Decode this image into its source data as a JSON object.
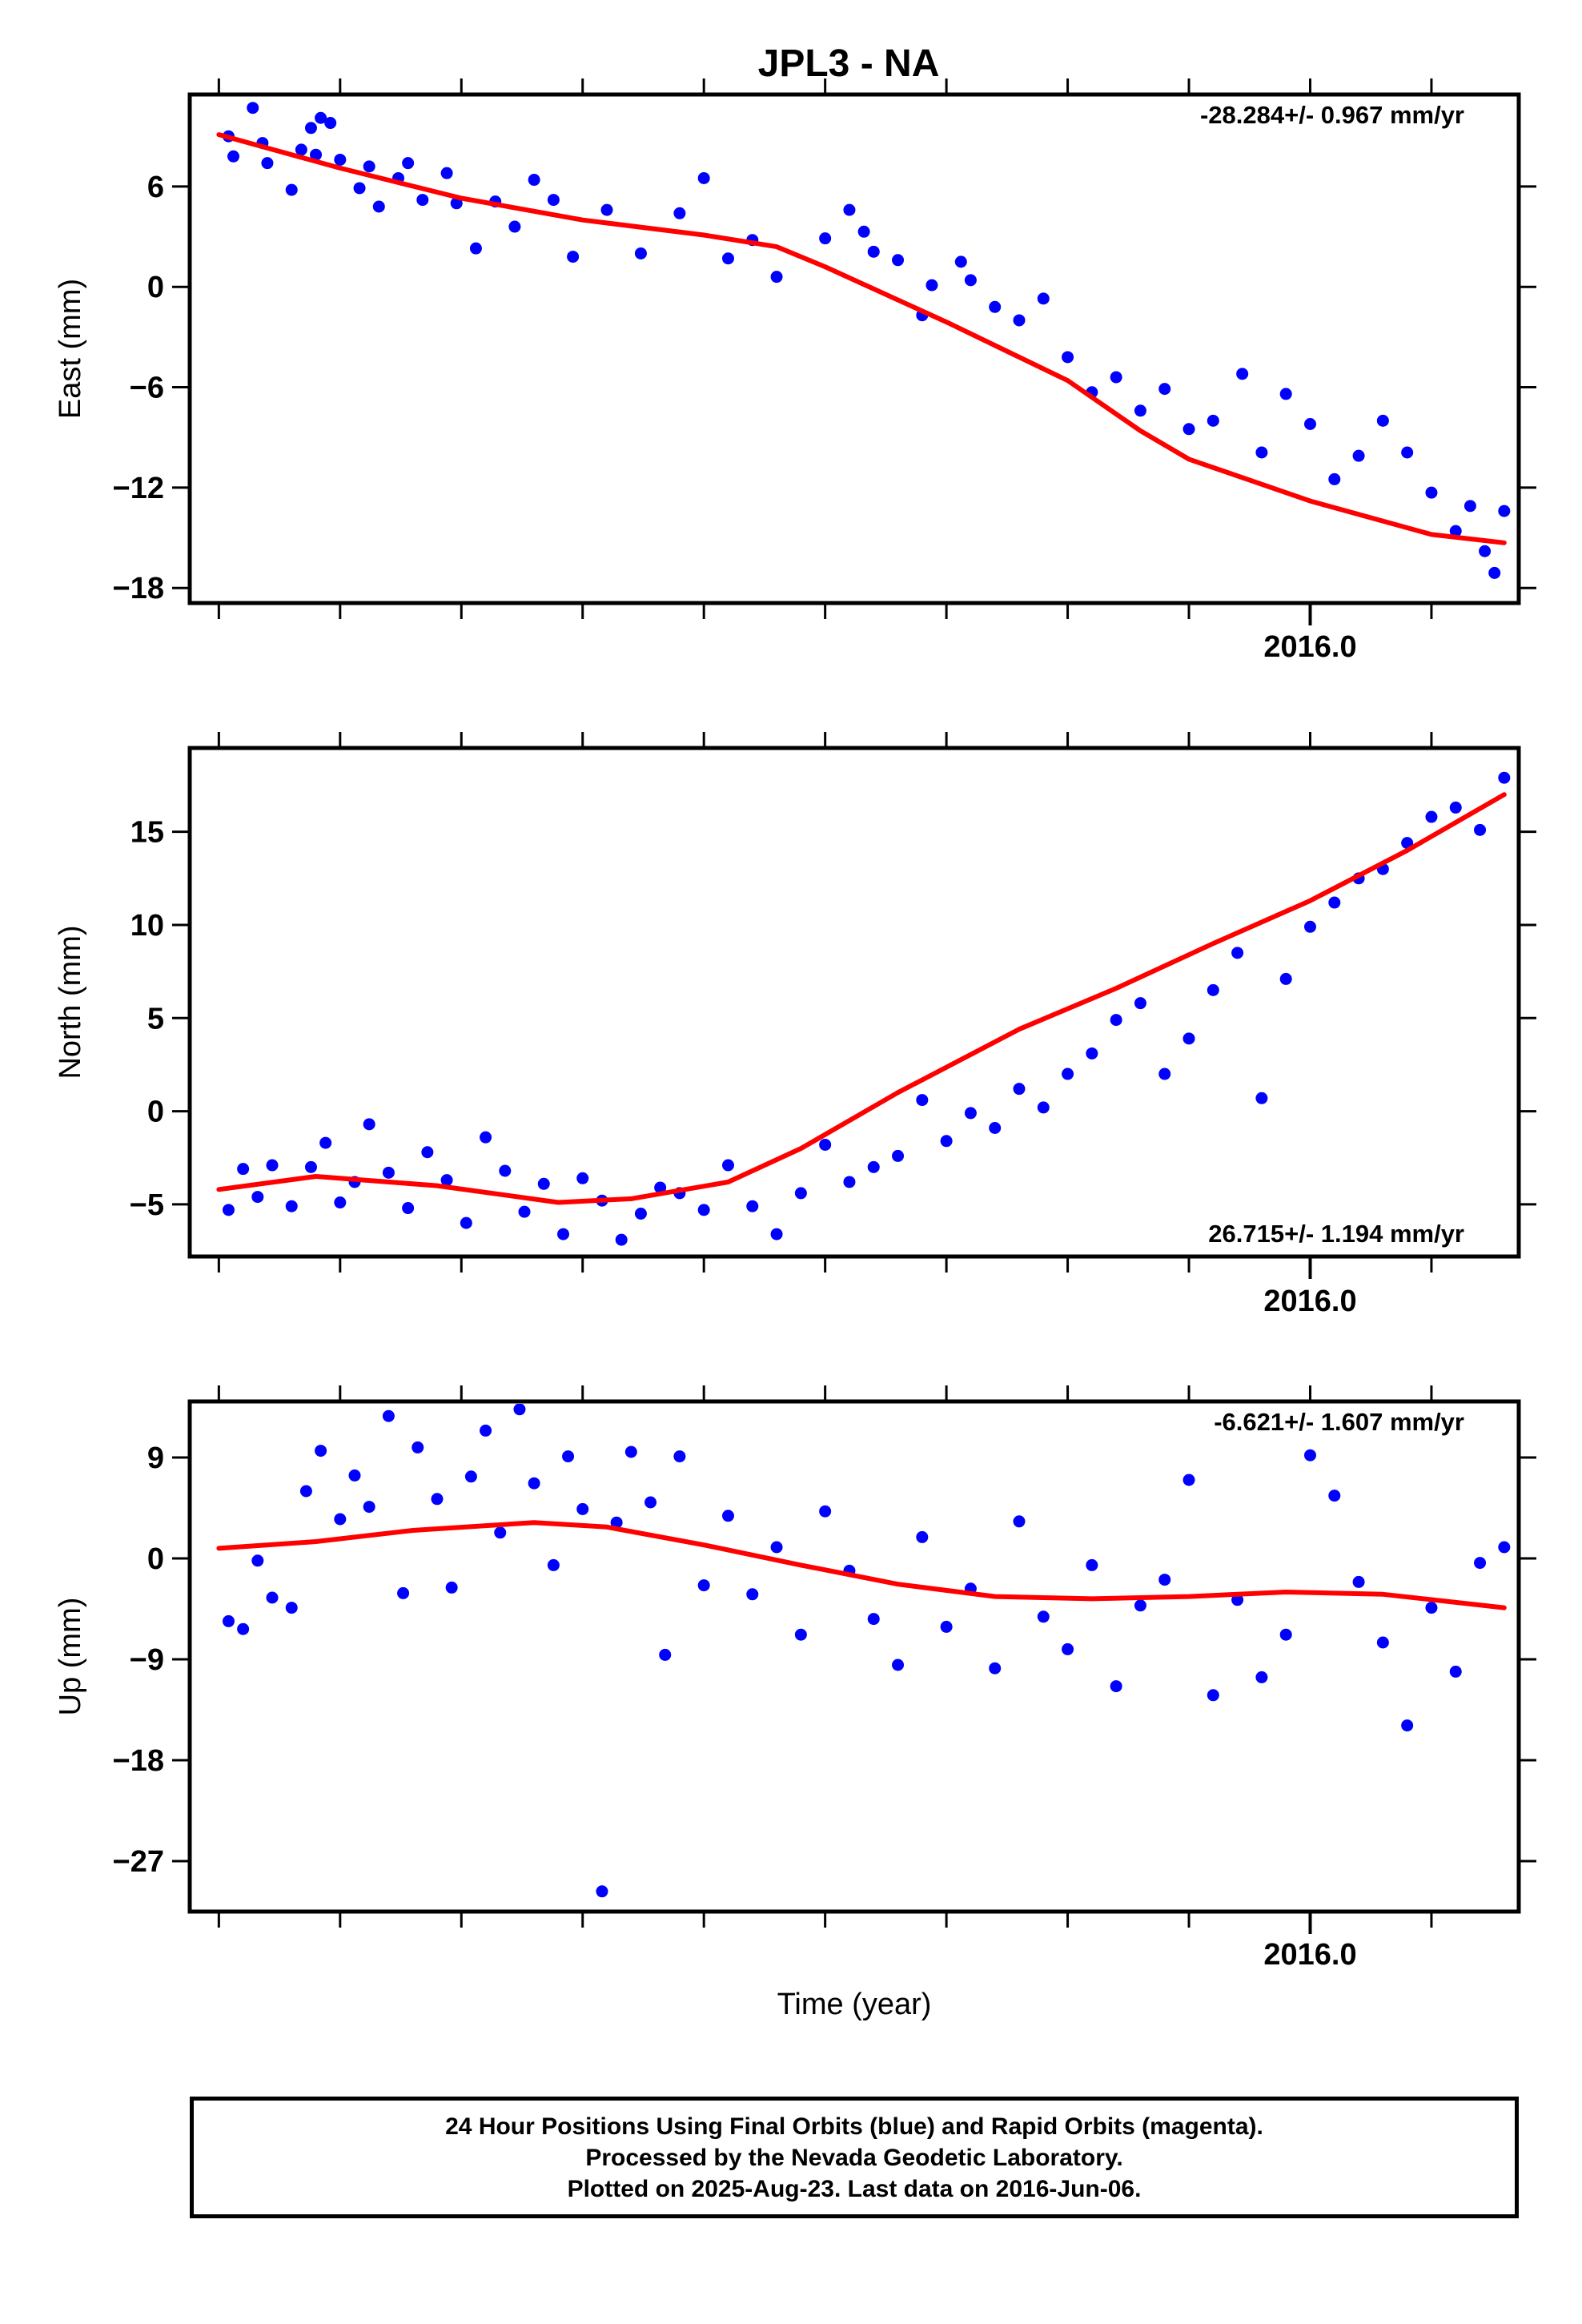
{
  "title": "JPL3 - NA",
  "footer": {
    "line1": "24 Hour Positions Using Final Orbits (blue) and Rapid Orbits (magenta).",
    "line2": "Processed by the Nevada Geodetic Laboratory.",
    "line3": "Plotted on 2025-Aug-23. Last data on 2016-Jun-06."
  },
  "colors": {
    "final_orbits": "#0000ff",
    "rapid_orbits": "#ff00ff",
    "fit": "#ff0000",
    "axis": "#000000"
  },
  "chart_data": [
    {
      "type": "scatter",
      "ylabel": "East (mm)",
      "xlabel": "",
      "xlim": [
        2013.69,
        2016.43
      ],
      "ylim": [
        -18.9,
        11.5
      ],
      "xtick_labels": [
        {
          "value": 2016.0,
          "label": "2016.0"
        }
      ],
      "ytick_labels": [
        6,
        0,
        -6,
        -12,
        -18
      ],
      "rate_text": "-28.284+/- 0.967 mm/yr",
      "rate_position": "top-right",
      "fit_line": {
        "x": [
          2013.75,
          2014.0,
          2014.25,
          2014.5,
          2014.75,
          2014.9,
          2015.0,
          2015.25,
          2015.5,
          2015.65,
          2015.75,
          2016.0,
          2016.25,
          2016.4
        ],
        "y": [
          9.1,
          7.1,
          5.3,
          4.0,
          3.1,
          2.4,
          1.2,
          -2.1,
          -5.6,
          -8.6,
          -10.3,
          -12.8,
          -14.8,
          -15.3
        ]
      },
      "points": {
        "x": [
          2013.77,
          2013.78,
          2013.82,
          2013.84,
          2013.85,
          2013.9,
          2013.92,
          2013.94,
          2013.95,
          2013.96,
          2013.98,
          2014.0,
          2014.04,
          2014.06,
          2014.08,
          2014.12,
          2014.14,
          2014.17,
          2014.22,
          2014.24,
          2014.28,
          2014.32,
          2014.36,
          2014.4,
          2014.44,
          2014.48,
          2014.55,
          2014.62,
          2014.7,
          2014.75,
          2014.8,
          2014.85,
          2014.9,
          2015.0,
          2015.05,
          2015.08,
          2015.1,
          2015.15,
          2015.2,
          2015.22,
          2015.28,
          2015.3,
          2015.35,
          2015.4,
          2015.45,
          2015.5,
          2015.55,
          2015.6,
          2015.65,
          2015.7,
          2015.75,
          2015.8,
          2015.86,
          2015.9,
          2015.95,
          2016.0,
          2016.05,
          2016.1,
          2016.15,
          2016.2,
          2016.25,
          2016.3,
          2016.33,
          2016.36,
          2016.38,
          2016.4
        ],
        "y": [
          9.0,
          7.8,
          10.7,
          8.6,
          7.4,
          5.8,
          8.2,
          9.5,
          7.9,
          10.1,
          9.8,
          7.6,
          5.9,
          7.2,
          4.8,
          6.5,
          7.4,
          5.2,
          6.8,
          5.0,
          2.3,
          5.1,
          3.6,
          6.4,
          5.2,
          1.8,
          4.6,
          2.0,
          4.4,
          6.5,
          1.7,
          2.8,
          0.6,
          2.9,
          4.6,
          3.3,
          2.1,
          1.6,
          -1.7,
          0.1,
          1.5,
          0.4,
          -1.2,
          -2.0,
          -0.7,
          -4.2,
          -6.3,
          -5.4,
          -7.4,
          -6.1,
          -8.5,
          -8.0,
          -5.2,
          -9.9,
          -6.4,
          -8.2,
          -11.5,
          -10.1,
          -8.0,
          -9.9,
          -12.3,
          -14.6,
          -13.1,
          -15.8,
          -17.1,
          -13.4
        ]
      }
    },
    {
      "type": "scatter",
      "ylabel": "North (mm)",
      "xlabel": "",
      "xlim": [
        2013.69,
        2016.43
      ],
      "ylim": [
        -7.8,
        19.5
      ],
      "xtick_labels": [
        {
          "value": 2016.0,
          "label": "2016.0"
        }
      ],
      "ytick_labels": [
        15,
        10,
        5,
        0,
        -5
      ],
      "rate_text": "26.715+/- 1.194 mm/yr",
      "rate_position": "bottom-right",
      "fit_line": {
        "x": [
          2013.75,
          2013.95,
          2014.2,
          2014.45,
          2014.6,
          2014.8,
          2014.95,
          2015.15,
          2015.4,
          2015.6,
          2015.8,
          2016.0,
          2016.2,
          2016.4
        ],
        "y": [
          -4.2,
          -3.5,
          -4.0,
          -4.9,
          -4.7,
          -3.8,
          -2.0,
          1.0,
          4.4,
          6.6,
          9.0,
          11.3,
          14.0,
          17.0
        ]
      },
      "points": {
        "x": [
          2013.77,
          2013.8,
          2013.83,
          2013.86,
          2013.9,
          2013.94,
          2013.97,
          2014.0,
          2014.03,
          2014.06,
          2014.1,
          2014.14,
          2014.18,
          2014.22,
          2014.26,
          2014.3,
          2014.34,
          2014.38,
          2014.42,
          2014.46,
          2014.5,
          2014.54,
          2014.58,
          2014.62,
          2014.66,
          2014.7,
          2014.75,
          2014.8,
          2014.85,
          2014.9,
          2014.95,
          2015.0,
          2015.05,
          2015.1,
          2015.15,
          2015.2,
          2015.25,
          2015.3,
          2015.35,
          2015.4,
          2015.45,
          2015.5,
          2015.55,
          2015.6,
          2015.65,
          2015.7,
          2015.75,
          2015.8,
          2015.85,
          2015.9,
          2015.95,
          2016.0,
          2016.05,
          2016.1,
          2016.15,
          2016.2,
          2016.25,
          2016.3,
          2016.35,
          2016.4
        ],
        "y": [
          -5.3,
          -3.1,
          -4.6,
          -2.9,
          -5.1,
          -3.0,
          -1.7,
          -4.9,
          -3.8,
          -0.7,
          -3.3,
          -5.2,
          -2.2,
          -3.7,
          -6.0,
          -1.4,
          -3.2,
          -5.4,
          -3.9,
          -6.6,
          -3.6,
          -4.8,
          -6.9,
          -5.5,
          -4.1,
          -4.4,
          -5.3,
          -2.9,
          -5.1,
          -6.6,
          -4.4,
          -1.8,
          -3.8,
          -3.0,
          -2.4,
          0.6,
          -1.6,
          -0.1,
          -0.9,
          1.2,
          0.2,
          2.0,
          3.1,
          4.9,
          5.8,
          2.0,
          3.9,
          6.5,
          8.5,
          0.7,
          7.1,
          9.9,
          11.2,
          12.5,
          13.0,
          14.4,
          15.8,
          16.3,
          15.1,
          17.9
        ]
      }
    },
    {
      "type": "scatter",
      "ylabel": "Up (mm)",
      "xlabel": "Time (year)",
      "xlim": [
        2013.69,
        2016.43
      ],
      "ylim": [
        -31.5,
        14.0
      ],
      "xtick_labels": [
        {
          "value": 2016.0,
          "label": "2016.0"
        }
      ],
      "ytick_labels": [
        9,
        0,
        -9,
        -18,
        -27
      ],
      "rate_text": "-6.621+/- 1.607 mm/yr",
      "rate_position": "top-right",
      "fit_line": {
        "x": [
          2013.75,
          2013.95,
          2014.15,
          2014.4,
          2014.55,
          2014.75,
          2014.95,
          2015.15,
          2015.35,
          2015.55,
          2015.75,
          2015.95,
          2016.15,
          2016.4
        ],
        "y": [
          0.9,
          1.5,
          2.5,
          3.2,
          2.8,
          1.2,
          -0.6,
          -2.3,
          -3.4,
          -3.6,
          -3.4,
          -3.0,
          -3.2,
          -4.4
        ]
      },
      "points": {
        "x": [
          2013.77,
          2013.8,
          2013.83,
          2013.86,
          2013.9,
          2013.93,
          2013.96,
          2014.0,
          2014.03,
          2014.06,
          2014.1,
          2014.13,
          2014.16,
          2014.2,
          2014.23,
          2014.27,
          2014.3,
          2014.33,
          2014.37,
          2014.4,
          2014.44,
          2014.47,
          2014.5,
          2014.54,
          2014.57,
          2014.6,
          2014.64,
          2014.67,
          2014.7,
          2014.75,
          2014.8,
          2014.85,
          2014.9,
          2014.95,
          2015.0,
          2015.05,
          2015.1,
          2015.15,
          2015.2,
          2015.25,
          2015.3,
          2015.35,
          2015.4,
          2015.45,
          2015.5,
          2015.55,
          2015.6,
          2015.65,
          2015.7,
          2015.75,
          2015.8,
          2015.85,
          2015.9,
          2015.95,
          2016.0,
          2016.05,
          2016.1,
          2016.15,
          2016.2,
          2016.25,
          2016.3,
          2016.35,
          2016.4
        ],
        "y": [
          -5.6,
          -6.3,
          -0.2,
          -3.5,
          -4.4,
          6.0,
          9.6,
          3.5,
          7.4,
          4.6,
          12.7,
          -3.1,
          9.9,
          5.3,
          -2.6,
          7.3,
          11.4,
          2.3,
          13.3,
          6.7,
          -0.6,
          9.1,
          4.4,
          -29.7,
          3.2,
          9.5,
          5.0,
          -8.6,
          9.1,
          -2.4,
          3.8,
          -3.2,
          1.0,
          -6.8,
          4.2,
          -1.1,
          -5.4,
          -9.5,
          1.9,
          -6.1,
          -2.7,
          -9.8,
          3.3,
          -5.2,
          -8.1,
          -0.6,
          -11.4,
          -4.2,
          -1.9,
          7.0,
          -12.2,
          -3.7,
          -10.6,
          -6.8,
          9.2,
          5.6,
          -2.1,
          -7.5,
          -14.9,
          -4.4,
          -10.1,
          -0.4,
          1.0
        ]
      }
    }
  ]
}
